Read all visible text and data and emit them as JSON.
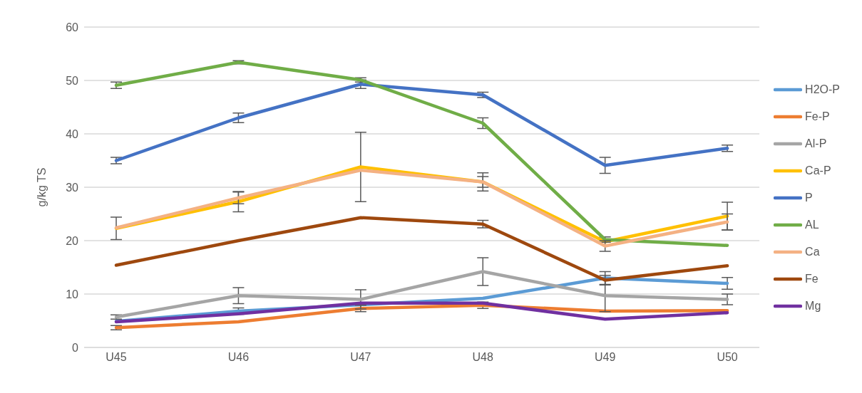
{
  "chart_data": {
    "type": "line",
    "ylabel": "g/kg TS",
    "categories": [
      "U45",
      "U46",
      "U47",
      "U48",
      "U49",
      "U50"
    ],
    "series": [
      {
        "name": "H2O-P",
        "color": "#5b9bd5",
        "values": [
          4.9,
          6.8,
          8.0,
          9.2,
          13.0,
          12.0
        ],
        "errors": [
          null,
          0.6,
          null,
          null,
          1.2,
          1.1
        ]
      },
      {
        "name": "Fe-P",
        "color": "#ed7d31",
        "values": [
          3.7,
          4.8,
          7.3,
          7.9,
          6.8,
          6.9
        ],
        "errors": [
          0.4,
          null,
          0.6,
          0.6,
          null,
          null
        ]
      },
      {
        "name": "Al-P",
        "color": "#a5a5a5",
        "values": [
          5.7,
          9.7,
          9.0,
          14.2,
          9.7,
          9.0
        ],
        "errors": [
          0.4,
          1.5,
          1.8,
          2.6,
          3.0,
          1.0
        ]
      },
      {
        "name": "Ca-P",
        "color": "#ffc000",
        "values": [
          22.3,
          27.3,
          33.8,
          31.0,
          19.8,
          24.6
        ],
        "errors": [
          2.1,
          1.9,
          6.5,
          1.0,
          null,
          2.6
        ]
      },
      {
        "name": "P",
        "color": "#4472c4",
        "values": [
          35.0,
          43.0,
          49.3,
          47.3,
          34.1,
          37.3
        ],
        "errors": [
          0.6,
          0.9,
          0.8,
          0.5,
          1.5,
          0.6
        ]
      },
      {
        "name": "AL",
        "color": "#70ad47",
        "values": [
          49.1,
          53.4,
          50.1,
          42.0,
          20.2,
          19.1
        ],
        "errors": [
          0.6,
          0.3,
          0.4,
          1.0,
          0.5,
          null
        ]
      },
      {
        "name": "Ca",
        "color": "#f4b183",
        "values": [
          22.4,
          28.0,
          33.2,
          31.0,
          19.0,
          23.5
        ],
        "errors": [
          null,
          1.1,
          null,
          1.7,
          1.0,
          1.5
        ]
      },
      {
        "name": "Fe",
        "color": "#9e480e",
        "values": [
          15.4,
          20.0,
          24.3,
          23.1,
          12.6,
          15.3
        ],
        "errors": [
          null,
          null,
          null,
          0.7,
          0.9,
          null
        ]
      },
      {
        "name": "Mg",
        "color": "#7030a0",
        "values": [
          4.8,
          6.3,
          8.3,
          8.3,
          5.3,
          6.5
        ],
        "errors": [
          null,
          null,
          null,
          null,
          null,
          null
        ]
      }
    ],
    "ylim": [
      0,
      60
    ],
    "yticks": [
      0,
      10,
      20,
      30,
      40,
      50,
      60
    ],
    "grid": "y",
    "legend": "right",
    "marker": "none",
    "line_style": "solid"
  }
}
